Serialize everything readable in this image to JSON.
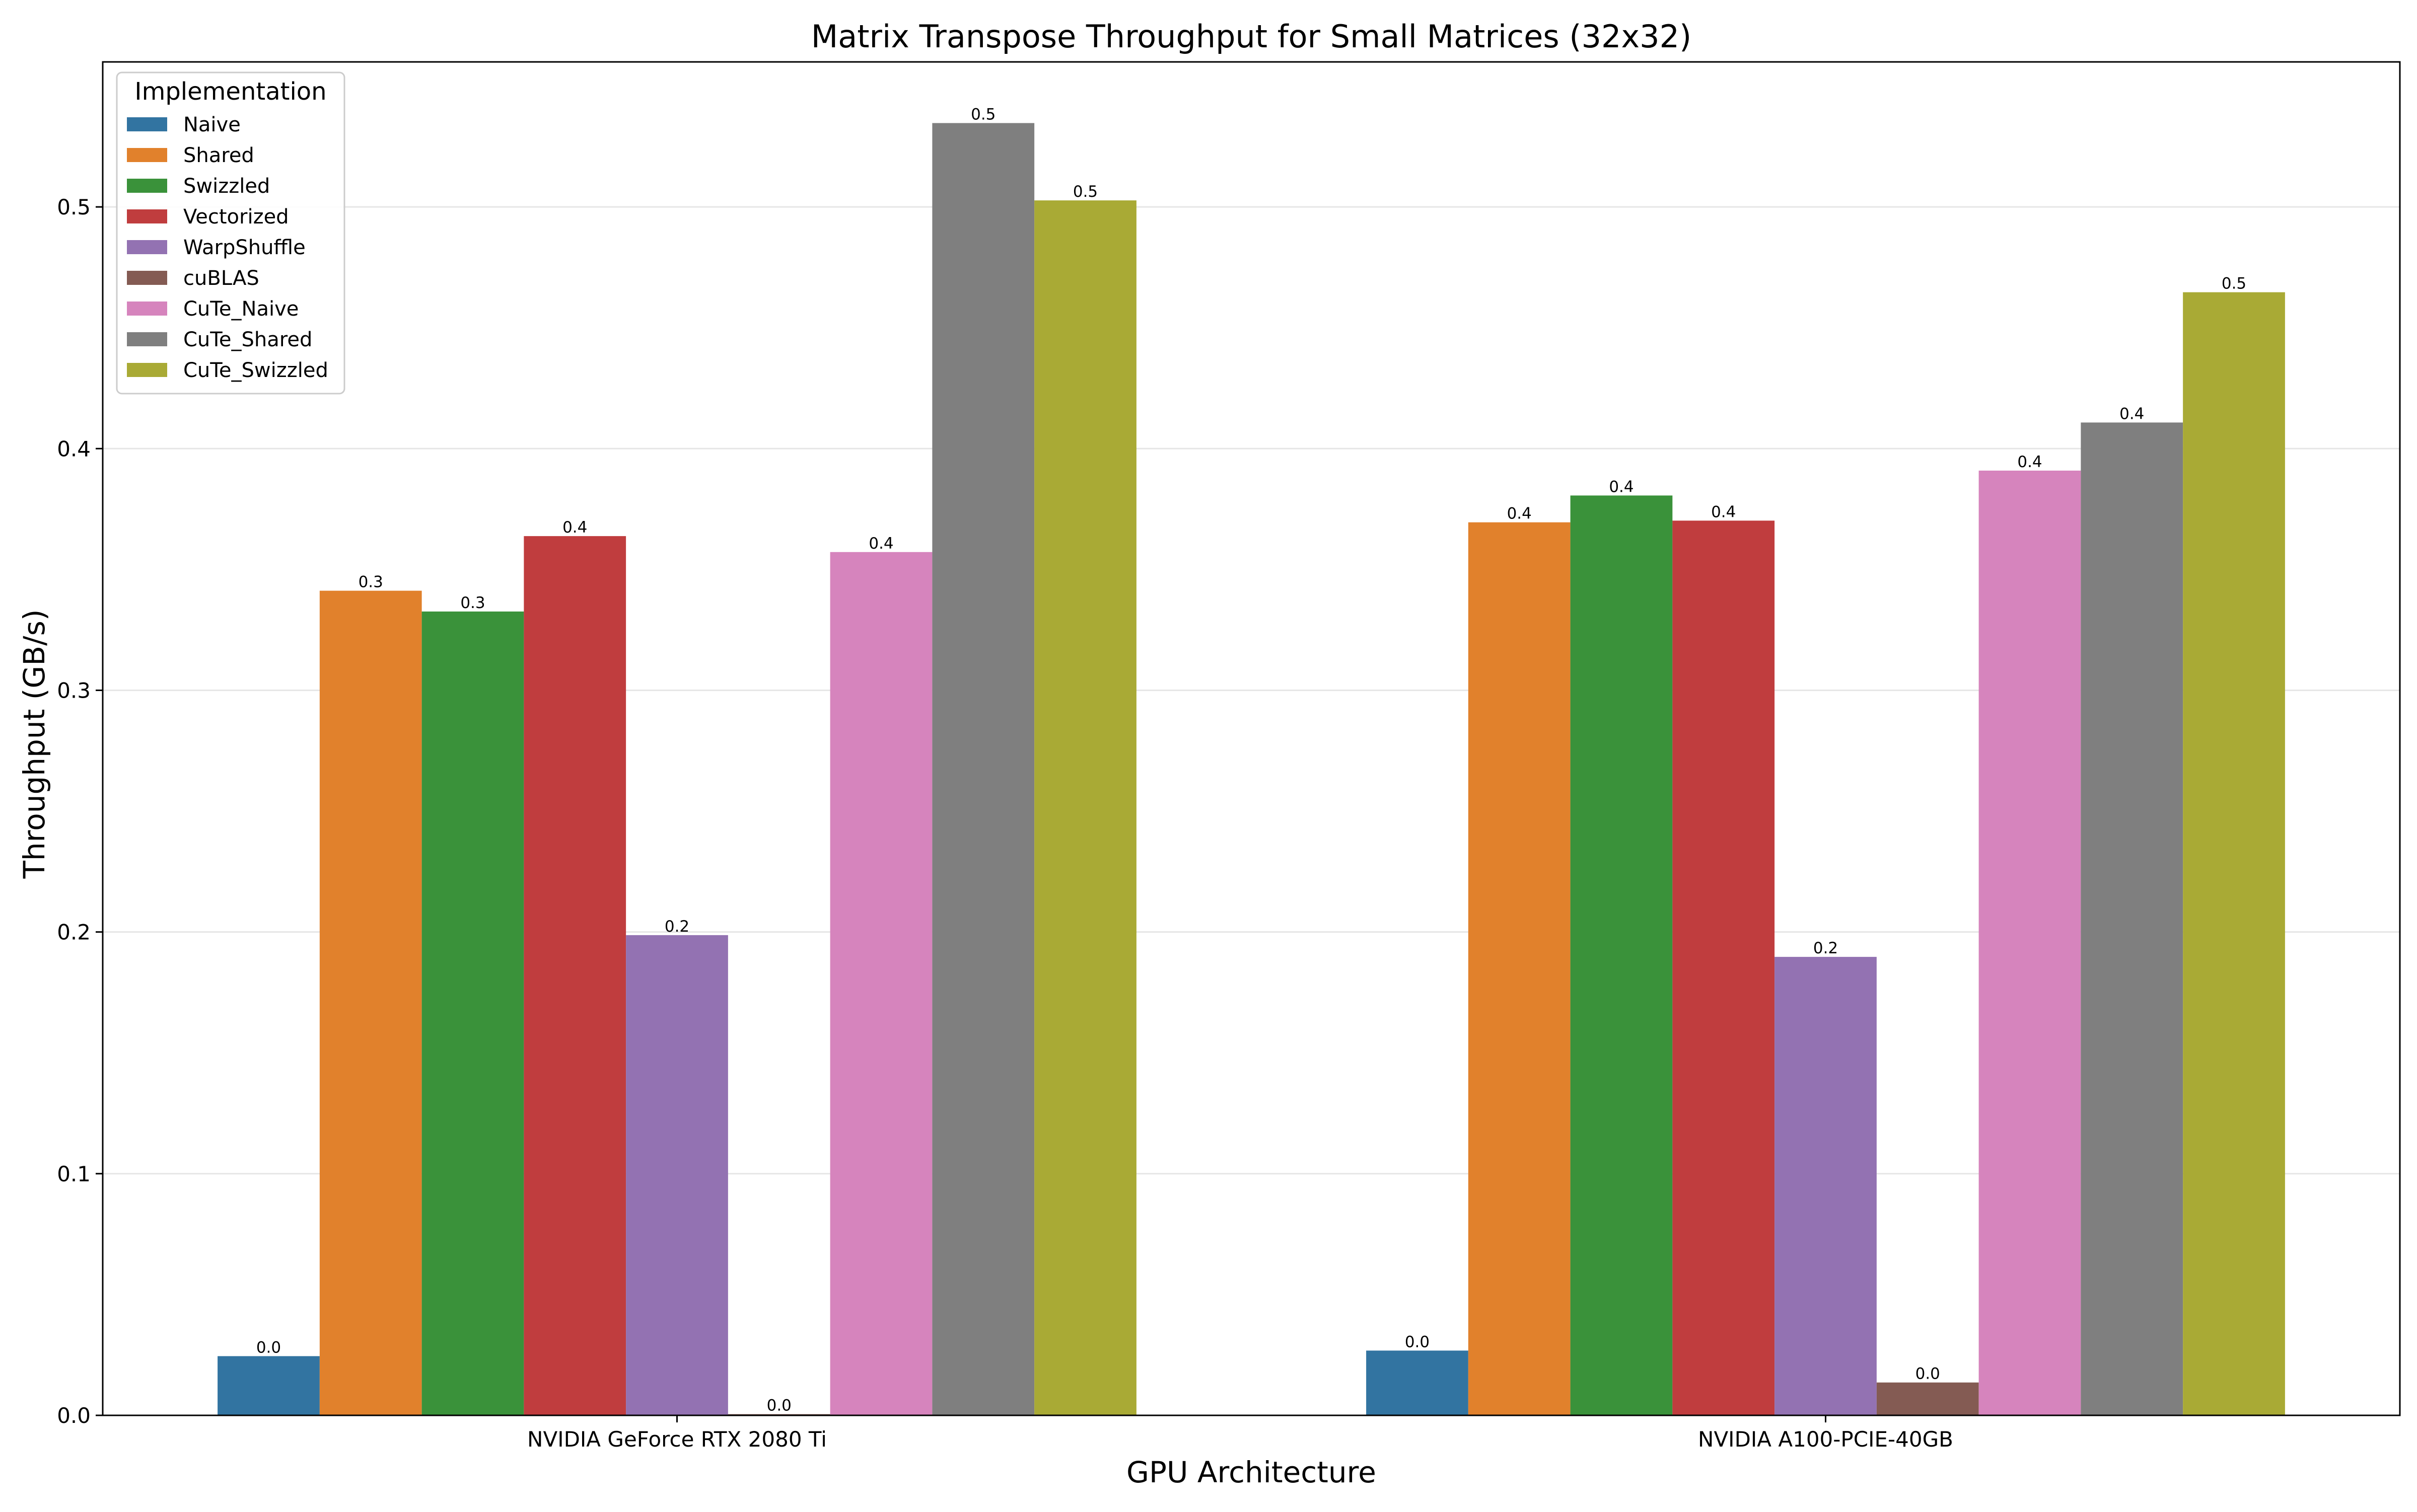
{
  "chart_data": {
    "type": "bar",
    "title": "Matrix Transpose Throughput for Small Matrices (32x32)",
    "xlabel": "GPU Architecture",
    "ylabel": "Throughput (GB/s)",
    "ylim": [
      0,
      0.56
    ],
    "yticks": [
      "0.0",
      "0.1",
      "0.2",
      "0.3",
      "0.4",
      "0.5"
    ],
    "grid": true,
    "legend": {
      "title": "Implementation",
      "position": "top-left"
    },
    "categories": [
      "NVIDIA GeForce RTX 2080 Ti",
      "NVIDIA A100-PCIE-40GB"
    ],
    "series": [
      {
        "name": "Naive",
        "color": "#3274a1",
        "values": [
          0.0245,
          0.0268
        ],
        "labels": [
          "0.0",
          "0.0"
        ]
      },
      {
        "name": "Shared",
        "color": "#e1812c",
        "values": [
          0.3412,
          0.3695
        ],
        "labels": [
          "0.3",
          "0.4"
        ]
      },
      {
        "name": "Swizzled",
        "color": "#3a923a",
        "values": [
          0.3326,
          0.3806
        ],
        "labels": [
          "0.3",
          "0.4"
        ]
      },
      {
        "name": "Vectorized",
        "color": "#c03d3e",
        "values": [
          0.3638,
          0.3702
        ],
        "labels": [
          "0.4",
          "0.4"
        ]
      },
      {
        "name": "WarpShuffle",
        "color": "#9372b2",
        "values": [
          0.1987,
          0.1897
        ],
        "labels": [
          "0.2",
          "0.2"
        ]
      },
      {
        "name": "cuBLAS",
        "color": "#845b53",
        "values": [
          0.0005,
          0.0136
        ],
        "labels": [
          "0.0",
          "0.0"
        ]
      },
      {
        "name": "CuTe_Naive",
        "color": "#d684bd",
        "values": [
          0.3572,
          0.3909
        ],
        "labels": [
          "0.4",
          "0.4"
        ]
      },
      {
        "name": "CuTe_Shared",
        "color": "#7f7f7f",
        "values": [
          0.5347,
          0.4108
        ],
        "labels": [
          "0.5",
          "0.4"
        ]
      },
      {
        "name": "CuTe_Swizzled",
        "color": "#a9aa35",
        "values": [
          0.5027,
          0.4647
        ],
        "labels": [
          "0.5",
          "0.5"
        ]
      }
    ]
  }
}
